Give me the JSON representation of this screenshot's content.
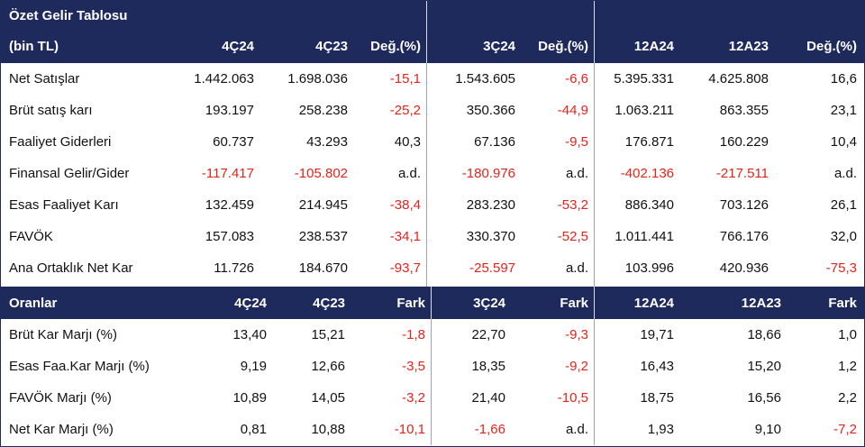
{
  "summary": {
    "title": "Özet Gelir Tablosu",
    "unit": "(bin TL)",
    "columns": [
      "4Ç24",
      "4Ç23",
      "Değ.(%)",
      "3Ç24",
      "Değ.(%)",
      "12A24",
      "12A23",
      "Değ.(%)"
    ],
    "rows": [
      {
        "label": "Net Satışlar",
        "values": [
          "1.442.063",
          "1.698.036",
          "-15,1",
          "1.543.605",
          "-6,6",
          "5.395.331",
          "4.625.808",
          "16,6"
        ]
      },
      {
        "label": "Brüt satış karı",
        "values": [
          "193.197",
          "258.238",
          "-25,2",
          "350.366",
          "-44,9",
          "1.063.211",
          "863.355",
          "23,1"
        ]
      },
      {
        "label": "Faaliyet Giderleri",
        "values": [
          "60.737",
          "43.293",
          "40,3",
          "67.136",
          "-9,5",
          "176.871",
          "160.229",
          "10,4"
        ]
      },
      {
        "label": "Finansal Gelir/Gider",
        "values": [
          "-117.417",
          "-105.802",
          "a.d.",
          "-180.976",
          "a.d.",
          "-402.136",
          "-217.511",
          "a.d."
        ]
      },
      {
        "label": "Esas Faaliyet Karı",
        "values": [
          "132.459",
          "214.945",
          "-38,4",
          "283.230",
          "-53,2",
          "886.340",
          "703.126",
          "26,1"
        ]
      },
      {
        "label": "FAVÖK",
        "values": [
          "157.083",
          "238.537",
          "-34,1",
          "330.370",
          "-52,5",
          "1.011.441",
          "766.176",
          "32,0"
        ]
      },
      {
        "label": "Ana Ortaklık Net Kar",
        "values": [
          "11.726",
          "184.670",
          "-93,7",
          "-25.597",
          "a.d.",
          "103.996",
          "420.936",
          "-75,3"
        ]
      }
    ]
  },
  "ratios": {
    "title": "Oranlar",
    "columns": [
      "4Ç24",
      "4Ç23",
      "Fark",
      "3Ç24",
      "Fark",
      "12A24",
      "12A23",
      "Fark"
    ],
    "rows": [
      {
        "label": "Brüt Kar Marjı (%)",
        "values": [
          "13,40",
          "15,21",
          "-1,8",
          "22,70",
          "-9,3",
          "19,71",
          "18,66",
          "1,0"
        ]
      },
      {
        "label": "Esas Faa.Kar Marjı (%)",
        "values": [
          "9,19",
          "12,66",
          "-3,5",
          "18,35",
          "-9,2",
          "16,43",
          "15,20",
          "1,2"
        ]
      },
      {
        "label": "FAVÖK Marjı (%)",
        "values": [
          "10,89",
          "14,05",
          "-3,2",
          "21,40",
          "-10,5",
          "18,75",
          "16,56",
          "2,2"
        ]
      },
      {
        "label": "Net Kar Marjı (%)",
        "values": [
          "0,81",
          "10,88",
          "-10,1",
          "-1,66",
          "a.d.",
          "1,93",
          "9,10",
          "-7,2"
        ]
      }
    ]
  },
  "colors": {
    "header_bg": "#1f2a5c",
    "header_text": "#ffffff",
    "negative": "#e4231b",
    "text": "#111111"
  }
}
